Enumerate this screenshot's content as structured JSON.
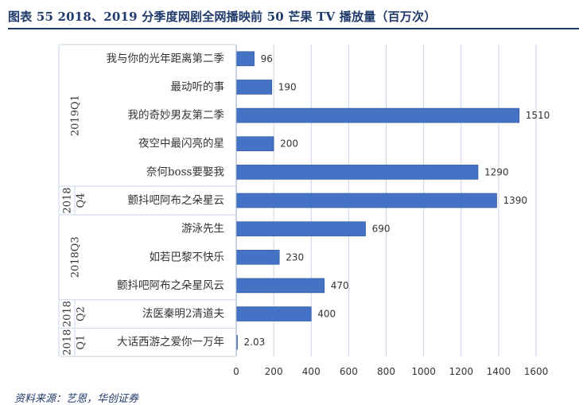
{
  "title": "图表 55   2018、2019 分季度网剧全网播映前 50 芒果 TV 播放量（百万次）",
  "source": "资料来源：艺恩，华创证券",
  "colors": {
    "bar": "#4472c4",
    "bar_edge": "#2f5597",
    "grid": "#c9d6ea",
    "axis_text": "#333333",
    "title": "#1f3a6b"
  },
  "chart_data": {
    "type": "bar",
    "orientation": "horizontal",
    "categories": [
      "我与你的光年距离第二季",
      "最动听的事",
      "我的奇妙男友第二季",
      "夜空中最闪亮的星",
      "奈何boss要娶我",
      "颤抖吧阿布之朵星云",
      "游泳先生",
      "如若巴黎不快乐",
      "颤抖吧阿布之朵星风云",
      "法医秦明2清道夫",
      "大话西游之爱你一万年"
    ],
    "values": [
      96,
      190,
      1510,
      200,
      1290,
      1390,
      690,
      230,
      470,
      400,
      2.03
    ],
    "data_labels": [
      "96",
      "190",
      "1510",
      "200",
      "1290",
      "1390",
      "690",
      "230",
      "470",
      "400",
      "2.03"
    ],
    "groups": [
      {
        "label": "2019Q1",
        "start": 0,
        "end": 4
      },
      {
        "label": "2018 Q4",
        "start": 5,
        "end": 5
      },
      {
        "label": "2018Q3",
        "start": 6,
        "end": 8
      },
      {
        "label": "2018 Q2",
        "start": 9,
        "end": 9
      },
      {
        "label": "2018 Q1",
        "start": 10,
        "end": 10
      }
    ],
    "x_ticks": [
      "0",
      "200",
      "400",
      "600",
      "800",
      "1000",
      "1200",
      "1400",
      "1600"
    ],
    "xlim": [
      0,
      1600
    ],
    "grid": true
  }
}
